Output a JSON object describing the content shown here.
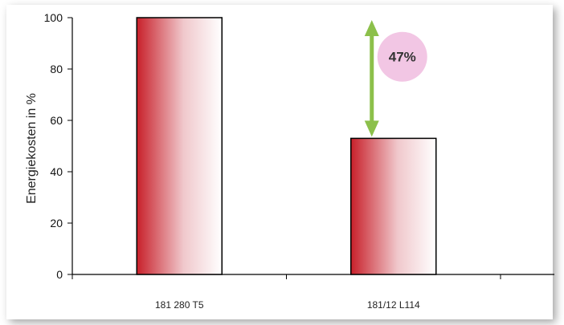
{
  "chart_data": {
    "type": "bar",
    "categories": [
      "181 280 T5",
      "181/12 L114"
    ],
    "values": [
      100,
      53
    ],
    "ylabel": "Energiekosten in %",
    "ylim": [
      0,
      100
    ],
    "yticks": [
      "0",
      "20",
      "40",
      "60",
      "80",
      "100"
    ],
    "grid": false,
    "annotation": {
      "label": "47%",
      "from_value": 100,
      "to_value": 53,
      "category_index": 1
    },
    "colors": {
      "bar_dark": "#c8202a",
      "bar_light": "#ffffff",
      "arrow": "#8cc04b",
      "badge": "#f2c6e4"
    }
  }
}
